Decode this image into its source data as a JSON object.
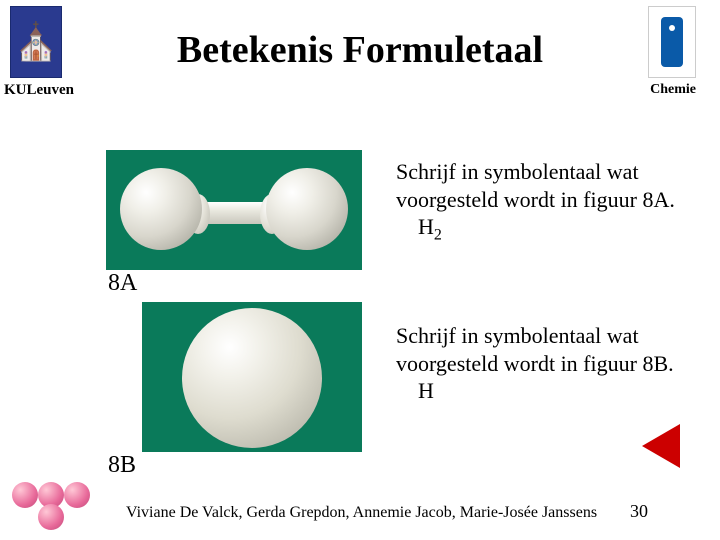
{
  "header": {
    "title": "Betekenis Formuletaal",
    "institution": "KULeuven",
    "department": "Chemie"
  },
  "figures": {
    "a": {
      "label": "8A"
    },
    "b": {
      "label": "8B"
    }
  },
  "questions": {
    "a": {
      "prompt": "Schrijf in symbolentaal wat voorgesteld wordt in figuur 8A.",
      "answer_base": "H",
      "answer_sub": "2"
    },
    "b": {
      "prompt": "Schrijf in symbolentaal wat voorgesteld wordt in figuur 8B.",
      "answer_base": "H",
      "answer_sub": ""
    }
  },
  "footer": {
    "authors": "Viviane De Valck, Gerda Grepdon, Annemie Jacob, Marie-Josée Janssens",
    "page": "30"
  },
  "colors": {
    "molecule_bg": "#0a7a5a",
    "nav_red": "#cc0000",
    "logo_blue": "#2a3a8f"
  }
}
